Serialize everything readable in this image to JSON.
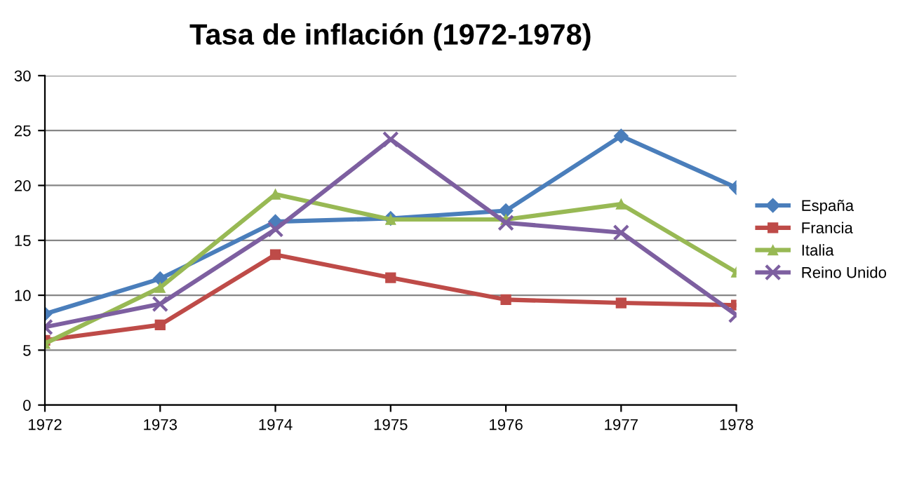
{
  "chart_data": {
    "type": "line",
    "title": "Tasa de inflación (1972-1978)",
    "categories": [
      "1972",
      "1973",
      "1974",
      "1975",
      "1976",
      "1977",
      "1978"
    ],
    "series": [
      {
        "name": "España",
        "color": "#4a7ebb",
        "marker": "diamond",
        "values": [
          8.3,
          11.5,
          16.7,
          17.0,
          17.7,
          24.5,
          19.8
        ]
      },
      {
        "name": "Francia",
        "color": "#be4b48",
        "marker": "square",
        "values": [
          5.9,
          7.3,
          13.7,
          11.6,
          9.6,
          9.3,
          9.1
        ]
      },
      {
        "name": "Italia",
        "color": "#98b954",
        "marker": "triangle",
        "values": [
          5.6,
          10.7,
          19.2,
          16.9,
          16.9,
          18.3,
          12.1
        ]
      },
      {
        "name": "Reino Unido",
        "color": "#7d5fa0",
        "marker": "cross",
        "values": [
          7.1,
          9.2,
          16.0,
          24.2,
          16.6,
          15.7,
          8.2
        ]
      }
    ],
    "ylim": [
      0,
      30
    ],
    "yticks": [
      0,
      5,
      10,
      15,
      20,
      25,
      30
    ],
    "grid": "y",
    "legend": "right"
  }
}
